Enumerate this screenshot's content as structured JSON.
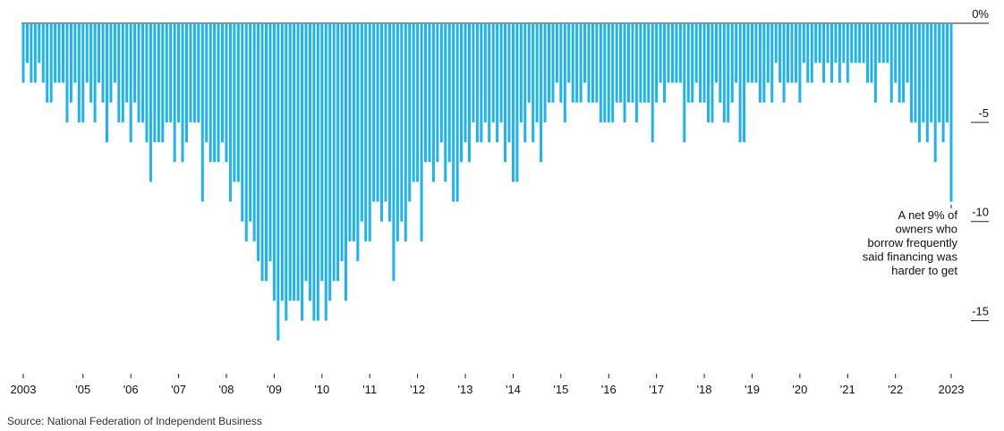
{
  "chart_data": {
    "type": "bar",
    "source": "Source: National Federation of Independent Business",
    "annotation": [
      "A net 9% of",
      "owners who",
      "borrow frequently",
      "said financing was",
      "harder to get"
    ],
    "color": "#1db3f0",
    "ylim": [
      -17.5,
      0
    ],
    "yticks": [
      {
        "value": 0,
        "label": "0%"
      },
      -5,
      -10,
      -15
    ],
    "categories": [
      "2003",
      null,
      null,
      null,
      null,
      null,
      null,
      null,
      null,
      null,
      null,
      null,
      null,
      null,
      null,
      "'05",
      null,
      null,
      null,
      null,
      null,
      null,
      null,
      null,
      null,
      null,
      null,
      "'06",
      null,
      null,
      null,
      null,
      null,
      null,
      null,
      null,
      null,
      null,
      null,
      "'07",
      null,
      null,
      null,
      null,
      null,
      null,
      null,
      null,
      null,
      null,
      null,
      "'08",
      null,
      null,
      null,
      null,
      null,
      null,
      null,
      null,
      null,
      null,
      null,
      "'09",
      null,
      null,
      null,
      null,
      null,
      null,
      null,
      null,
      null,
      null,
      null,
      "'10",
      null,
      null,
      null,
      null,
      null,
      null,
      null,
      null,
      null,
      null,
      null,
      "'11",
      null,
      null,
      null,
      null,
      null,
      null,
      null,
      null,
      null,
      null,
      null,
      "'12",
      null,
      null,
      null,
      null,
      null,
      null,
      null,
      null,
      null,
      null,
      null,
      "'13",
      null,
      null,
      null,
      null,
      null,
      null,
      null,
      null,
      null,
      null,
      null,
      "'14",
      null,
      null,
      null,
      null,
      null,
      null,
      null,
      null,
      null,
      null,
      null,
      "'15",
      null,
      null,
      null,
      null,
      null,
      null,
      null,
      null,
      null,
      null,
      null,
      "'16",
      null,
      null,
      null,
      null,
      null,
      null,
      null,
      null,
      null,
      null,
      null,
      "'17",
      null,
      null,
      null,
      null,
      null,
      null,
      null,
      null,
      null,
      null,
      null,
      "'18",
      null,
      null,
      null,
      null,
      null,
      null,
      null,
      null,
      null,
      null,
      null,
      "'19",
      null,
      null,
      null,
      null,
      null,
      null,
      null,
      null,
      null,
      null,
      null,
      "'20",
      null,
      null,
      null,
      null,
      null,
      null,
      null,
      null,
      null,
      null,
      null,
      "'21",
      null,
      null,
      null,
      null,
      null,
      null,
      null,
      null,
      null,
      null,
      null,
      "'22",
      null,
      null,
      null,
      null,
      null,
      null,
      null,
      null,
      null,
      null,
      null,
      null,
      null,
      "2023"
    ],
    "values": [
      -3,
      -2,
      -3,
      -3,
      -2,
      -3,
      -4,
      -4,
      -3,
      -3,
      -3,
      -5,
      -4,
      -3,
      -5,
      -5,
      -3,
      -4,
      -5,
      -3,
      -4,
      -6,
      -4,
      -3,
      -5,
      -5,
      -4,
      -6,
      -4,
      -5,
      -5,
      -6,
      -8,
      -6,
      -6,
      -6,
      -5,
      -5,
      -7,
      -5,
      -7,
      -6,
      -5,
      -5,
      -5,
      -9,
      -6,
      -7,
      -7,
      -7,
      -6,
      -7,
      -9,
      -8,
      -8,
      -10,
      -11,
      -10,
      -11,
      -12,
      -13,
      -13,
      -12,
      -14,
      -16,
      -14,
      -15,
      -14,
      -14,
      -14,
      -15,
      -13,
      -14,
      -15,
      -15,
      -13,
      -15,
      -14,
      -13,
      -13,
      -12,
      -14,
      -11,
      -11,
      -12,
      -10,
      -11,
      -11,
      -9,
      -9,
      -10,
      -9,
      -10,
      -13,
      -11,
      -10,
      -11,
      -9,
      -8,
      -8,
      -11,
      -7,
      -7,
      -8,
      -7,
      -6,
      -8,
      -7,
      -9,
      -9,
      -7,
      -6,
      -7,
      -5,
      -6,
      -6,
      -5,
      -6,
      -5,
      -6,
      -5,
      -7,
      -6,
      -8,
      -8,
      -5,
      -6,
      -4,
      -6,
      -5,
      -7,
      -5,
      -4,
      -4,
      -3,
      -4,
      -5,
      -3,
      -4,
      -4,
      -4,
      -3,
      -4,
      -4,
      -4,
      -5,
      -5,
      -5,
      -5,
      -4,
      -4,
      -5,
      -4,
      -4,
      -5,
      -4,
      -4,
      -4,
      -6,
      -4,
      -3,
      -4,
      -3,
      -3,
      -3,
      -3,
      -6,
      -4,
      -4,
      -3,
      -4,
      -4,
      -5,
      -5,
      -3,
      -4,
      -5,
      -5,
      -4,
      -3,
      -6,
      -6,
      -3,
      -3,
      -3,
      -4,
      -4,
      -3,
      -4,
      -2,
      -3,
      -4,
      -3,
      -3,
      -3,
      -4,
      -2,
      -3,
      -3,
      -2,
      -2,
      -3,
      -2,
      -3,
      -2,
      -3,
      -2,
      -3,
      -2,
      -2,
      -2,
      -2,
      -3,
      -3,
      -4,
      -2,
      -2,
      -2,
      -4,
      -3,
      -4,
      -4,
      -3,
      -5,
      -5,
      -6,
      -5,
      -6,
      -5,
      -7,
      -5,
      -6,
      -5,
      -9
    ]
  }
}
